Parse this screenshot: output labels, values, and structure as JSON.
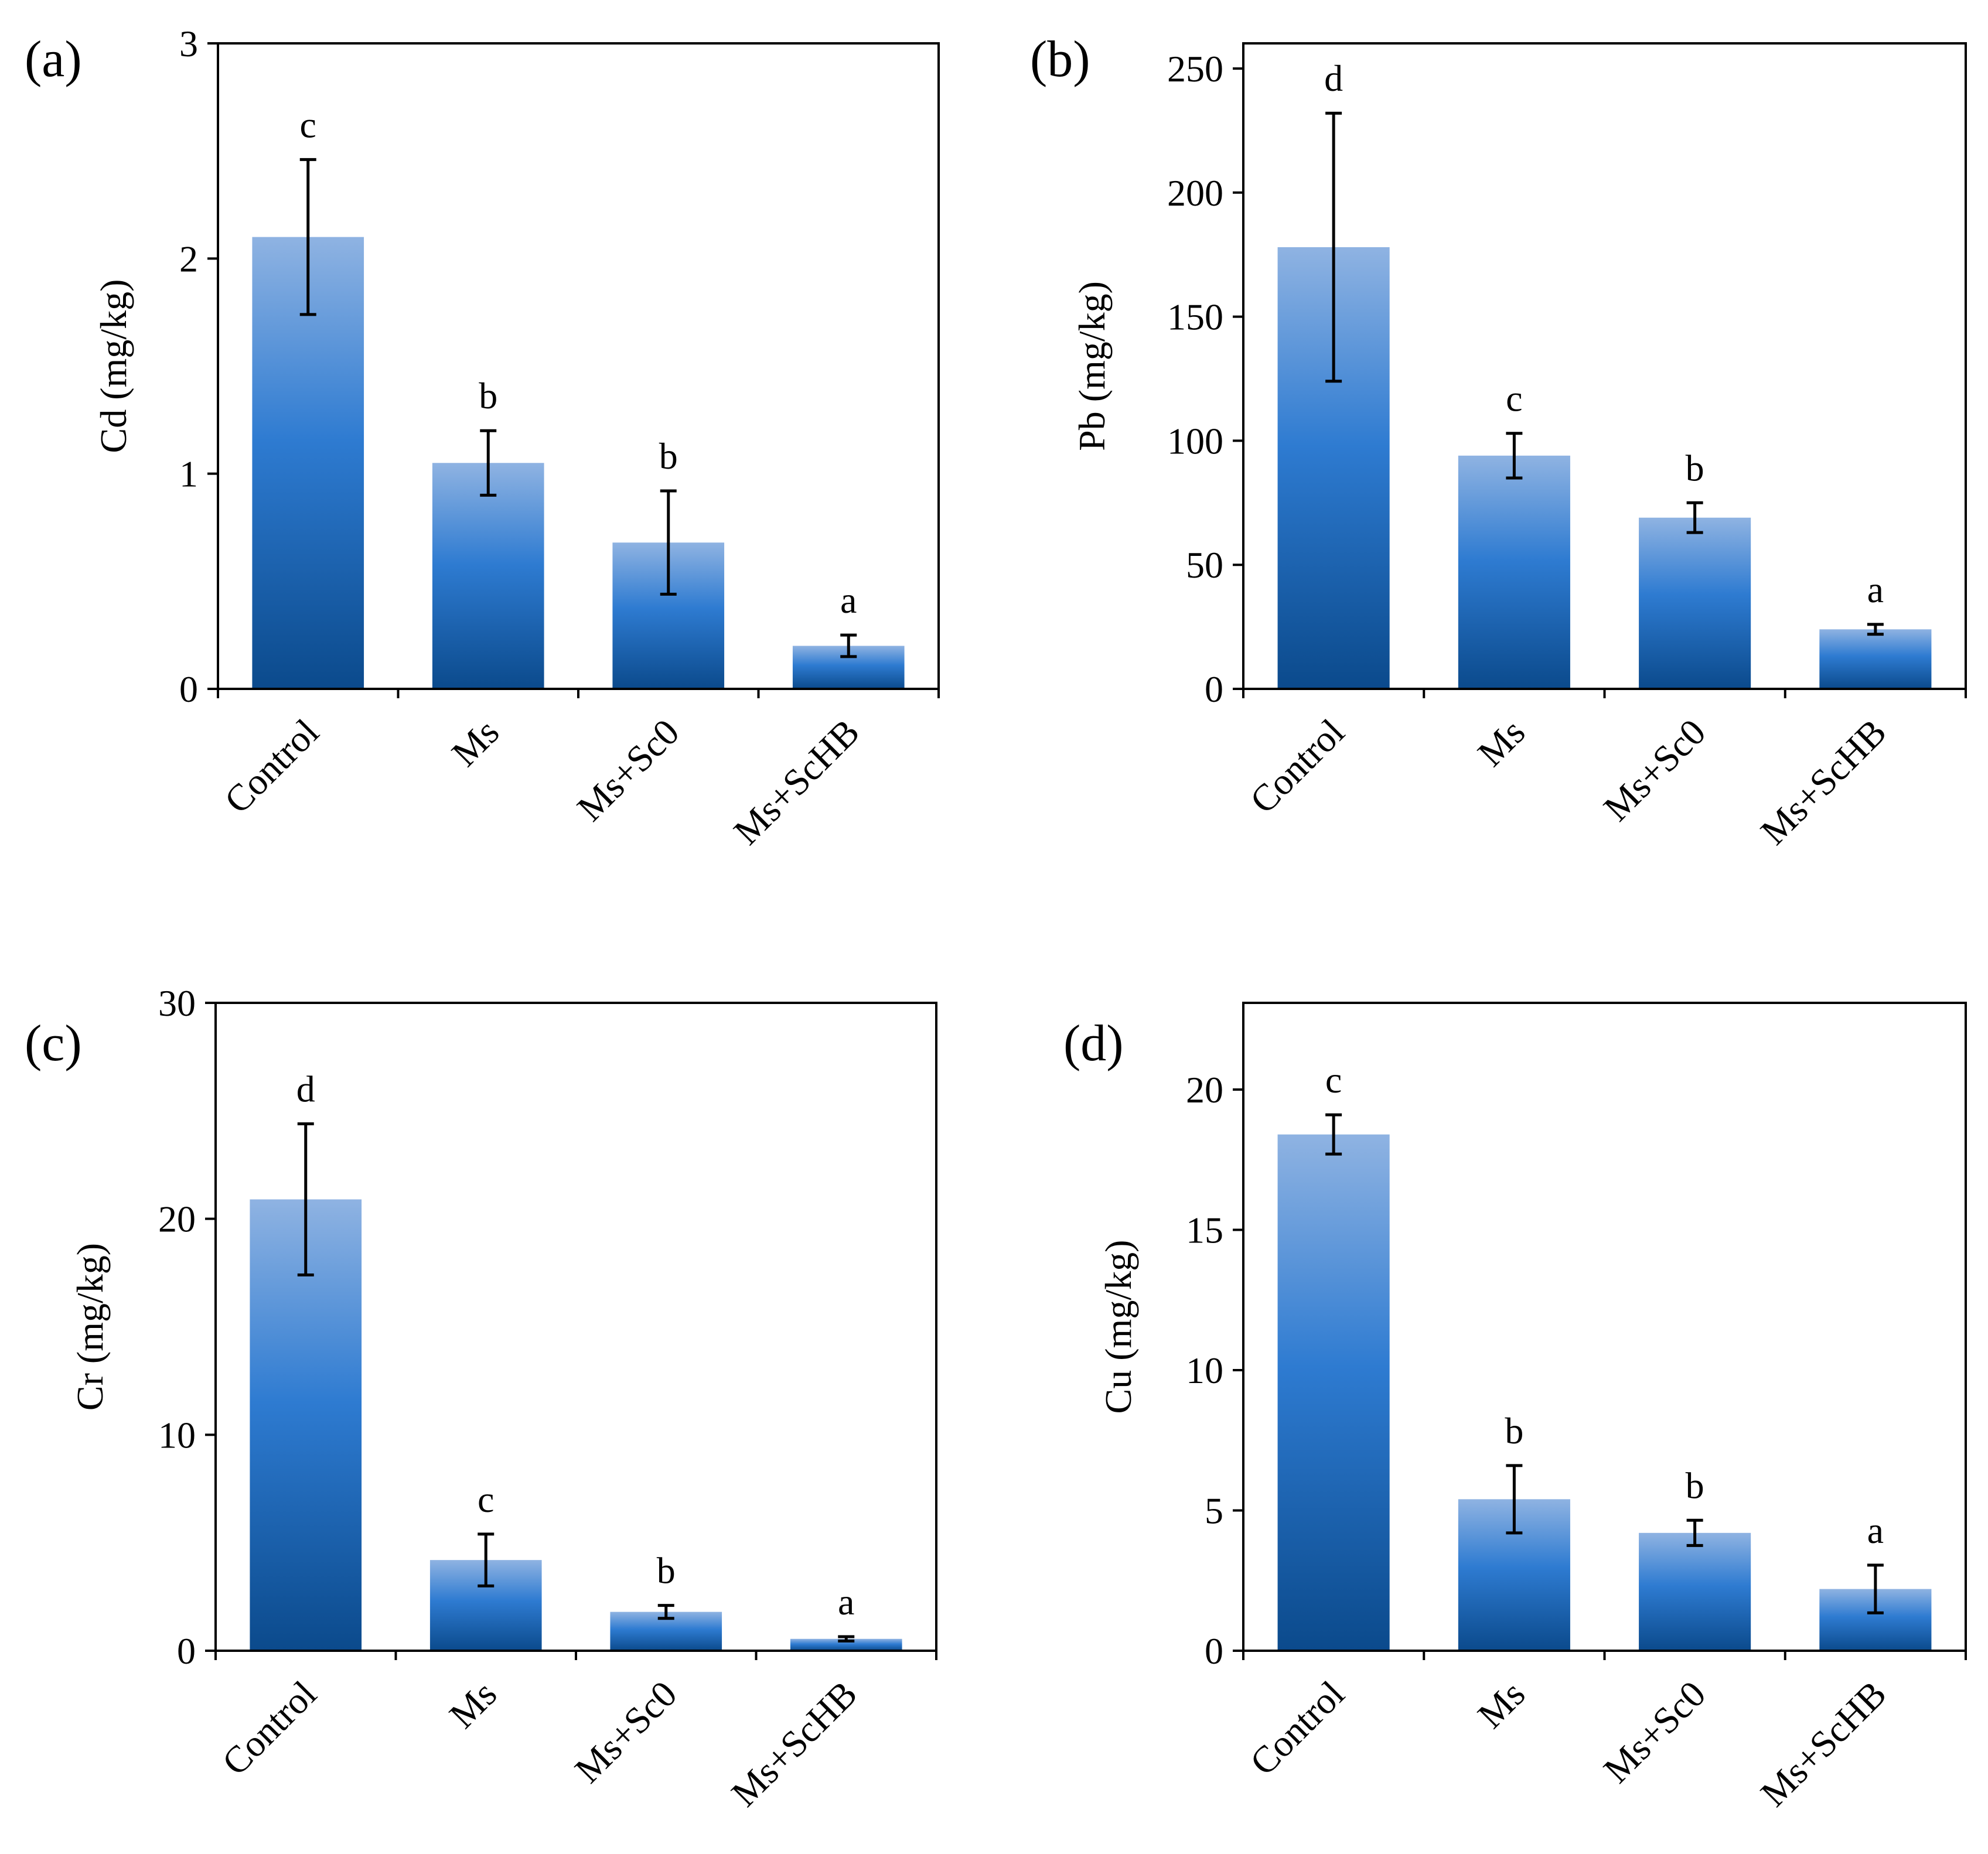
{
  "figure": {
    "gradient": {
      "top": "#8fb3e2",
      "middle": "#2e7bd1",
      "bottom": "#0b4a8c"
    }
  },
  "chart_data": [
    {
      "type": "bar",
      "panel": "(a)",
      "ylabel": "Cd (mg/kg)",
      "xlabel": "",
      "categories": [
        "Control",
        "Ms",
        "Ms+Sc0",
        "Ms+ScHB"
      ],
      "values": [
        2.1,
        1.05,
        0.68,
        0.2
      ],
      "errors": [
        0.36,
        0.15,
        0.24,
        0.05
      ],
      "letters": [
        "c",
        "b",
        "b",
        "a"
      ],
      "ylim": [
        0,
        3
      ],
      "yticks": [
        0,
        1,
        2,
        3
      ],
      "tick_labels": [
        "0",
        "1",
        "2",
        "3"
      ],
      "grid": false
    },
    {
      "type": "bar",
      "panel": "(b)",
      "ylabel": "Pb (mg/kg)",
      "xlabel": "",
      "categories": [
        "Control",
        "Ms",
        "Ms+Sc0",
        "Ms+ScHB"
      ],
      "values": [
        178,
        94,
        69,
        24
      ],
      "errors": [
        54,
        9,
        6,
        2
      ],
      "letters": [
        "d",
        "c",
        "b",
        "a"
      ],
      "ylim": [
        0,
        250
      ],
      "yticks": [
        0,
        50,
        100,
        150,
        200,
        250
      ],
      "tick_labels": [
        "0",
        "50",
        "100",
        "150",
        "200",
        "250"
      ],
      "grid": false
    },
    {
      "type": "bar",
      "panel": "(c)",
      "ylabel": "Cr (mg/kg)",
      "xlabel": "",
      "categories": [
        "Control",
        "Ms",
        "Ms+Sc0",
        "Ms+ScHB"
      ],
      "values": [
        20.9,
        4.2,
        1.8,
        0.55
      ],
      "errors": [
        3.5,
        1.2,
        0.3,
        0.1
      ],
      "letters": [
        "d",
        "c",
        "b",
        "a"
      ],
      "ylim": [
        0,
        30
      ],
      "yticks": [
        0,
        10,
        20,
        30
      ],
      "tick_labels": [
        "0",
        "10",
        "20",
        "30"
      ],
      "grid": false
    },
    {
      "type": "bar",
      "panel": "(d)",
      "ylabel": "Cu (mg/kg)",
      "xlabel": "",
      "categories": [
        "Control",
        "Ms",
        "Ms+Sc0",
        "Ms+ScHB"
      ],
      "values": [
        18.4,
        5.4,
        4.2,
        2.2
      ],
      "errors": [
        0.7,
        1.2,
        0.45,
        0.85
      ],
      "letters": [
        "c",
        "b",
        "b",
        "a"
      ],
      "ylim": [
        0,
        23
      ],
      "yticks": [
        0,
        5,
        10,
        15,
        20
      ],
      "tick_labels": [
        "0",
        "5",
        "10",
        "15",
        "20"
      ],
      "grid": false
    }
  ]
}
